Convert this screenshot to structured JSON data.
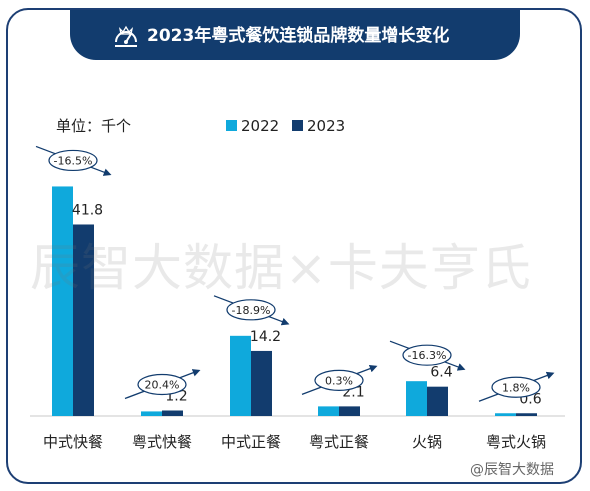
{
  "header": {
    "title": "2023年粤式餐饮连锁品牌数量增长变化",
    "icon": "crown-gauge-icon"
  },
  "unit_label": "单位：千个",
  "legend": [
    {
      "label": "2022",
      "color": "#0fa9dc"
    },
    {
      "label": "2023",
      "color": "#123c6e"
    }
  ],
  "watermark": "辰智大数据×卡夫亨氏",
  "footer": "@辰智大数据",
  "chart_data": {
    "type": "bar",
    "categories": [
      "中式快餐",
      "粤式快餐",
      "中式正餐",
      "粤式正餐",
      "火锅",
      "粤式火锅"
    ],
    "series": [
      {
        "name": "2022",
        "values": [
          50.1,
          1.0,
          17.5,
          2.1,
          7.6,
          0.6
        ],
        "color": "#0fa9dc"
      },
      {
        "name": "2023",
        "values": [
          41.8,
          1.2,
          14.2,
          2.1,
          6.4,
          0.6
        ],
        "color": "#123c6e"
      }
    ],
    "value_labels": [
      "41.8",
      "1.2",
      "14.2",
      "2.1",
      "6.4",
      "0.6"
    ],
    "annotations": [
      "-16.5%",
      "20.4%",
      "-18.9%",
      "0.3%",
      "-16.3%",
      "1.8%"
    ],
    "annotation_trend": [
      "down",
      "up",
      "down",
      "up",
      "down",
      "up"
    ],
    "ylim": [
      0,
      55
    ],
    "grid": false
  }
}
